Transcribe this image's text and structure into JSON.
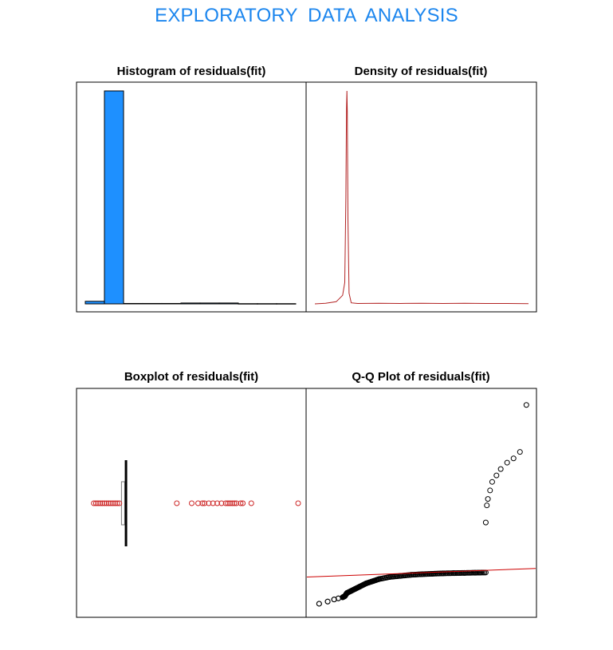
{
  "page": {
    "title": "EXPLORATORY  DATA  ANALYSIS",
    "title_color": "#1c86ee"
  },
  "chart_data": [
    {
      "type": "bar",
      "title": "Histogram of residuals(fit)",
      "xlabel": "",
      "ylabel": "",
      "note": "histogram of residuals; axes not printed; heights are relative counts",
      "bin_index": [
        0,
        1,
        2,
        3,
        4,
        5,
        6,
        7,
        8,
        9,
        10
      ],
      "values": [
        0.012,
        1.0,
        0.002,
        0.002,
        0.002,
        0.004,
        0.004,
        0.004,
        0.001,
        0.001,
        0.001
      ],
      "bar_color": "#1e90ff"
    },
    {
      "type": "line",
      "title": "Density of residuals(fit)",
      "xlabel": "",
      "ylabel": "",
      "line_color": "#b22222",
      "x": [
        0,
        0.05,
        0.1,
        0.13,
        0.14,
        0.145,
        0.148,
        0.15,
        0.152,
        0.155,
        0.16,
        0.17,
        0.2,
        0.3,
        0.4,
        0.5,
        0.6,
        0.7,
        0.8,
        0.9,
        1.0
      ],
      "y": [
        0.0,
        0.003,
        0.01,
        0.04,
        0.1,
        0.5,
        0.92,
        1.0,
        0.9,
        0.4,
        0.05,
        0.005,
        0.002,
        0.003,
        0.002,
        0.003,
        0.002,
        0.003,
        0.002,
        0.002,
        0.001
      ]
    },
    {
      "type": "scatter",
      "title": "Boxplot of residuals(fit)",
      "xlabel": "",
      "ylabel": "",
      "box_color": "#000000",
      "outlier_color": "#cd2626",
      "box": {
        "q1": 0.17,
        "median": 0.18,
        "q3": 0.185,
        "whisker_low": 0.17,
        "whisker_high": 0.185
      },
      "outliers": [
        0.04,
        0.05,
        0.06,
        0.07,
        0.08,
        0.09,
        0.1,
        0.11,
        0.12,
        0.13,
        0.14,
        0.15,
        0.16,
        0.43,
        0.5,
        0.53,
        0.55,
        0.56,
        0.58,
        0.6,
        0.62,
        0.64,
        0.66,
        0.67,
        0.68,
        0.69,
        0.7,
        0.71,
        0.73,
        0.74,
        0.78,
        1.0
      ]
    },
    {
      "type": "scatter",
      "title": "Q-Q Plot of residuals(fit)",
      "xlabel": "",
      "ylabel": "",
      "point_color": "#000000",
      "reference_line_color": "#cd0000",
      "reference_line": {
        "y_at_left": 0.155,
        "y_at_right": 0.195
      },
      "points": [
        [
          0.02,
          0.03
        ],
        [
          0.06,
          0.04
        ],
        [
          0.09,
          0.05
        ],
        [
          0.11,
          0.055
        ],
        [
          0.13,
          0.06
        ],
        [
          0.14,
          0.065
        ],
        [
          0.15,
          0.08
        ],
        [
          0.17,
          0.09
        ],
        [
          0.19,
          0.1
        ],
        [
          0.21,
          0.11
        ],
        [
          0.24,
          0.125
        ],
        [
          0.27,
          0.135
        ],
        [
          0.3,
          0.145
        ],
        [
          0.35,
          0.155
        ],
        [
          0.4,
          0.16
        ],
        [
          0.45,
          0.165
        ],
        [
          0.5,
          0.168
        ],
        [
          0.55,
          0.17
        ],
        [
          0.6,
          0.172
        ],
        [
          0.65,
          0.173
        ],
        [
          0.7,
          0.174
        ],
        [
          0.75,
          0.175
        ],
        [
          0.8,
          0.176
        ],
        [
          0.8,
          0.41
        ],
        [
          0.805,
          0.49
        ],
        [
          0.81,
          0.52
        ],
        [
          0.82,
          0.56
        ],
        [
          0.83,
          0.6
        ],
        [
          0.85,
          0.63
        ],
        [
          0.87,
          0.66
        ],
        [
          0.9,
          0.69
        ],
        [
          0.93,
          0.71
        ],
        [
          0.96,
          0.74
        ],
        [
          0.99,
          0.96
        ]
      ]
    }
  ]
}
